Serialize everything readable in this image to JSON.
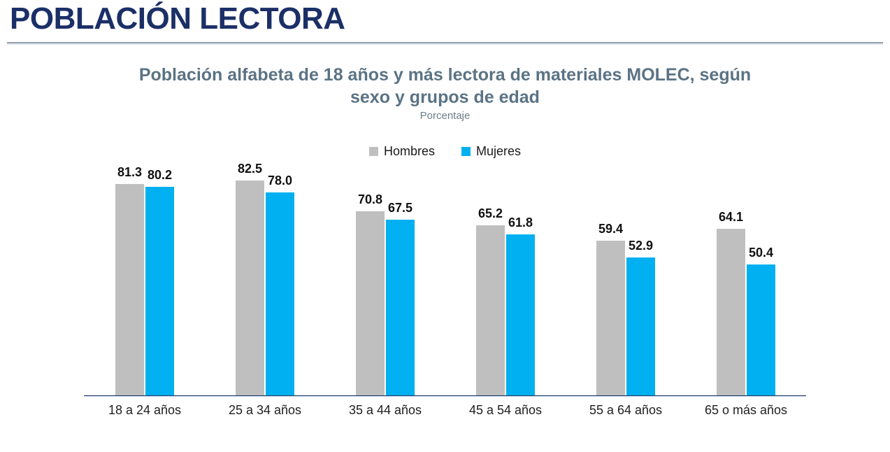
{
  "page": {
    "title": "POBLACIÓN LECTORA"
  },
  "chart": {
    "subtitle_line1": "Población alfabeta de 18 años y más lectora de materiales MOLEC, según",
    "subtitle_line2": "sexo y grupos de edad",
    "unit_label": "Porcentaje"
  },
  "colors": {
    "page_title": "#1b2f67",
    "chart_title": "#5b7384",
    "axis_line": "#1f3864",
    "hombres_bar": "#bfbfbf",
    "mujeres_bar": "#00b0f0",
    "value_label": "#111111"
  },
  "chart_data": {
    "type": "bar",
    "title": "Población alfabeta de 18 años y más lectora de materiales MOLEC, según sexo y grupos de edad",
    "subtitle": "Porcentaje",
    "categories": [
      "18 a 24 años",
      "25 a 34 años",
      "35 a 44 años",
      "45 a 54 años",
      "55 a 64 años",
      "65 o más años"
    ],
    "series": [
      {
        "name": "Hombres",
        "color": "#bfbfbf",
        "values": [
          81.3,
          82.5,
          70.8,
          65.2,
          59.4,
          64.1
        ]
      },
      {
        "name": "Mujeres",
        "color": "#00b0f0",
        "values": [
          80.2,
          78.0,
          67.5,
          61.8,
          52.9,
          50.4
        ]
      }
    ],
    "ylabel": "Porcentaje",
    "xlabel": "",
    "ylim": [
      0,
      90
    ],
    "grid": false,
    "legend_position": "top",
    "value_labels": true,
    "value_label_format": "0.0"
  }
}
